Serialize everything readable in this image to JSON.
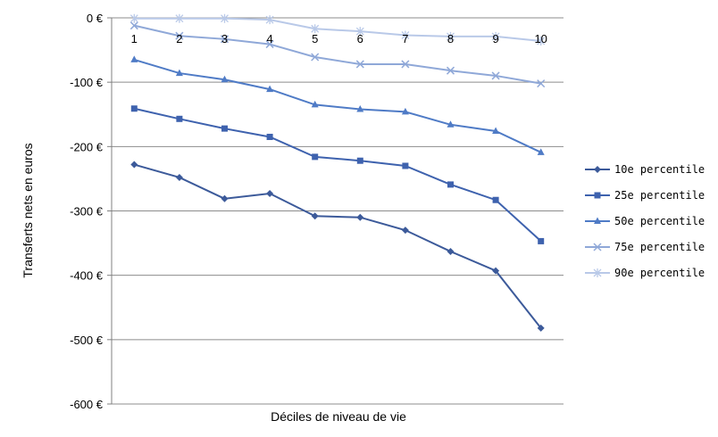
{
  "chart_data": {
    "type": "line",
    "xlabel": "Déciles de niveau de vie",
    "ylabel": "Transferts nets en euros",
    "x": [
      "1",
      "2",
      "3",
      "4",
      "5",
      "6",
      "7",
      "8",
      "9",
      "10"
    ],
    "ylim": [
      -600,
      0
    ],
    "yticks": [
      0,
      -100,
      -200,
      -300,
      -400,
      -500,
      -600
    ],
    "ytick_labels": [
      "0 €",
      "-100 €",
      "-200 €",
      "-300 €",
      "-400 €",
      "-500 €",
      "-600 €"
    ],
    "grid": true,
    "legend_position": "right",
    "series": [
      {
        "name": "10e percentile",
        "color": "#3c5a9a",
        "marker": "diamond",
        "values": [
          -228,
          -248,
          -281,
          -273,
          -308,
          -310,
          -330,
          -363,
          -393,
          -482
        ]
      },
      {
        "name": "25e percentile",
        "color": "#3e62ae",
        "marker": "square",
        "values": [
          -141,
          -157,
          -172,
          -185,
          -216,
          -222,
          -230,
          -259,
          -283,
          -347
        ]
      },
      {
        "name": "50e percentile",
        "color": "#4f7bc6",
        "marker": "triangle",
        "values": [
          -65,
          -86,
          -96,
          -111,
          -135,
          -142,
          -146,
          -166,
          -176,
          -209
        ]
      },
      {
        "name": "75e percentile",
        "color": "#8fa8d8",
        "marker": "x",
        "values": [
          -12,
          -28,
          -33,
          -41,
          -61,
          -72,
          -72,
          -82,
          -90,
          -102
        ]
      },
      {
        "name": "90e percentile",
        "color": "#b9c9e8",
        "marker": "star",
        "values": [
          -1,
          -1,
          -1,
          -3,
          -17,
          -21,
          -27,
          -29,
          -29,
          -36
        ]
      }
    ]
  }
}
